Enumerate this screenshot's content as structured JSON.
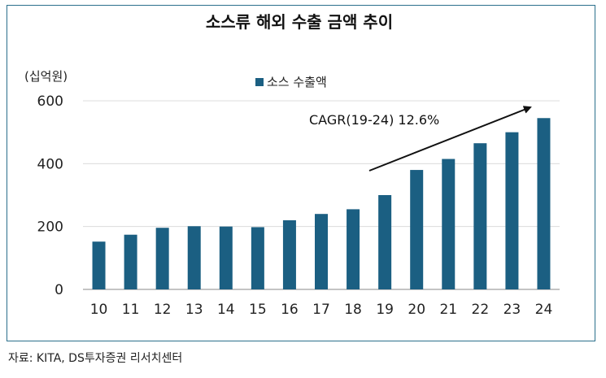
{
  "chart_data": {
    "type": "bar",
    "title": "소스류 해외 수출 금액 추이",
    "unit_label": "(십억원)",
    "categories": [
      "10",
      "11",
      "12",
      "13",
      "14",
      "15",
      "16",
      "17",
      "18",
      "19",
      "20",
      "21",
      "22",
      "23",
      "24"
    ],
    "series": [
      {
        "name": "소스 수출액",
        "values": [
          152,
          174,
          196,
          201,
          200,
          198,
          220,
          240,
          255,
          300,
          380,
          415,
          465,
          500,
          545
        ]
      }
    ],
    "ylim": [
      0,
      600
    ],
    "yticks": [
      0,
      200,
      400,
      600
    ],
    "grid": true,
    "legend_position": "top-center",
    "bar_color": "#1b5f82",
    "annotation": "CAGR(19-24) 12.6%"
  },
  "source": "자료: KITA, DS투자증권 리서치센터"
}
